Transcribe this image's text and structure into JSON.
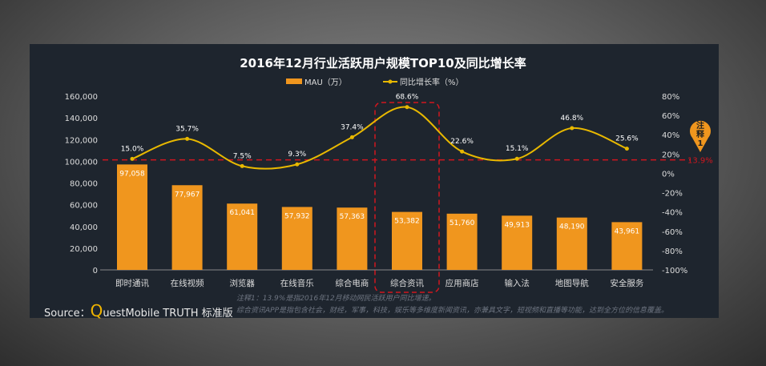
{
  "chart_data": {
    "type": "bar+line",
    "title": "2016年12月行业活跃用户规模TOP10及同比增长率",
    "categories": [
      "即时通讯",
      "在线视频",
      "浏览器",
      "在线音乐",
      "综合电商",
      "综合资讯",
      "应用商店",
      "输入法",
      "地图导航",
      "安全服务"
    ],
    "series": [
      {
        "name": "MAU（万）",
        "type": "bar",
        "axis": "left",
        "color": "#f0961e",
        "values": [
          97058,
          77967,
          61041,
          57932,
          57363,
          53382,
          51760,
          49913,
          48190,
          43961
        ],
        "labels": [
          "97,058",
          "77,967",
          "61,041",
          "57,932",
          "57,363",
          "53,382",
          "51,760",
          "49,913",
          "48,190",
          "43,961"
        ]
      },
      {
        "name": "同比增长率（%）",
        "type": "line",
        "axis": "right",
        "color": "#e8b800",
        "values": [
          15.0,
          35.7,
          7.5,
          9.3,
          37.4,
          68.6,
          22.6,
          15.1,
          46.8,
          25.6
        ],
        "labels": [
          "15.0%",
          "35.7%",
          "7.5%",
          "9.3%",
          "37.4%",
          "68.6%",
          "22.6%",
          "15.1%",
          "46.8%",
          "25.6%"
        ]
      }
    ],
    "left_axis": {
      "ylim": [
        0,
        160000
      ],
      "ticks": [
        "0",
        "20,000",
        "40,000",
        "60,000",
        "80,000",
        "100,000",
        "120,000",
        "140,000",
        "160,000"
      ]
    },
    "right_axis": {
      "ylim": [
        -100,
        80
      ],
      "ticks": [
        "-100%",
        "-80%",
        "-60%",
        "-40%",
        "-20%",
        "0%",
        "20%",
        "40%",
        "60%",
        "80%"
      ]
    },
    "reference_line": {
      "value": 13.9,
      "label": "13.9%",
      "color": "#d0161e"
    },
    "annotation": {
      "label": "注释1",
      "color": "#f0961e"
    },
    "highlight_category": "综合资讯",
    "legend_placement": "top-center",
    "grid": false
  },
  "source": {
    "prefix": "Source：",
    "q": "Q",
    "rest": "uestMobile TRUTH 标准版"
  },
  "notes": [
    "注释1：13.9%是指2016年12月移动网民活跃用户同比增速。",
    "综合资讯APP是指包含社会，财经，军事，科技，娱乐等多维度新闻资讯，亦兼具文字，短视频和直播等功能，达到全方位的信息覆盖。"
  ]
}
